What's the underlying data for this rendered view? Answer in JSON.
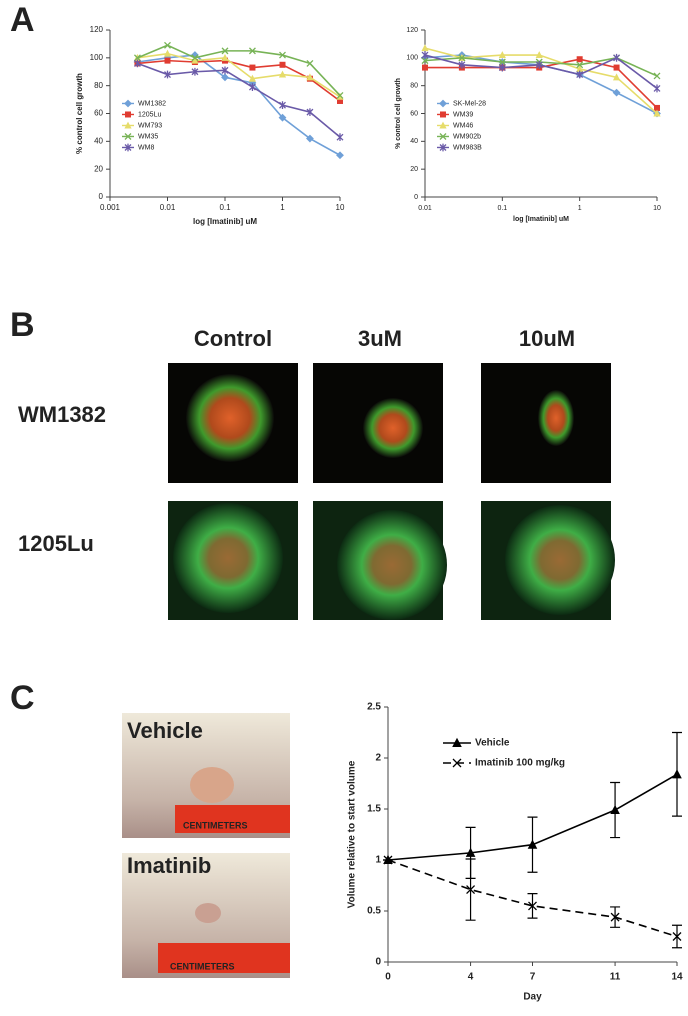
{
  "figure": {
    "panel_labels": [
      "A",
      "B",
      "C"
    ],
    "columns": [
      "Control",
      "3uM",
      "10uM"
    ],
    "rows": [
      "WM1382",
      "1205Lu"
    ],
    "photos": [
      {
        "label": "Vehicle",
        "ruler": "CENTIMETERS"
      },
      {
        "label": "Imatinib",
        "ruler": "CENTIMETERS"
      }
    ]
  },
  "chart_data": [
    {
      "type": "line",
      "xlabel": "log [Imatinib] uM",
      "ylabel": "% control cell growth",
      "log_x": true,
      "x": [
        0.003,
        0.01,
        0.03,
        0.1,
        0.3,
        1,
        3,
        10
      ],
      "xlim": [
        0.001,
        10
      ],
      "xticks": [
        0.001,
        0.01,
        0.1,
        1,
        10
      ],
      "ylim": [
        0,
        120
      ],
      "yticks": [
        0,
        20,
        40,
        60,
        80,
        100,
        120
      ],
      "grid": false,
      "legend": "center left",
      "series": [
        {
          "name": "WM1382",
          "color": "#6fa0d8",
          "marker": "diamond",
          "values": [
            97,
            100,
            102,
            86,
            82,
            57,
            42,
            30
          ]
        },
        {
          "name": "1205Lu",
          "color": "#e03c31",
          "marker": "square",
          "values": [
            96,
            98,
            97,
            98,
            93,
            95,
            85,
            69
          ]
        },
        {
          "name": "WM793",
          "color": "#e6dc6a",
          "marker": "triangle",
          "values": [
            100,
            103,
            98,
            100,
            85,
            88,
            86,
            72
          ]
        },
        {
          "name": "WM35",
          "color": "#77b356",
          "marker": "x",
          "values": [
            100,
            109,
            100,
            105,
            105,
            102,
            96,
            73
          ]
        },
        {
          "name": "WM8",
          "color": "#6a5aa8",
          "marker": "star",
          "values": [
            96,
            88,
            90,
            91,
            79,
            66,
            61,
            43
          ]
        }
      ]
    },
    {
      "type": "line",
      "xlabel": "log [Imatinib] uM",
      "ylabel": "% control cell growth",
      "log_x": true,
      "x": [
        0.01,
        0.03,
        0.1,
        0.3,
        1,
        3,
        10
      ],
      "xlim": [
        0.01,
        10
      ],
      "xticks": [
        0.01,
        0.1,
        1,
        10
      ],
      "ylim": [
        0,
        120
      ],
      "yticks": [
        0,
        20,
        40,
        60,
        80,
        100,
        120
      ],
      "grid": false,
      "legend": "center left",
      "series": [
        {
          "name": "SK-Mel-28",
          "color": "#6fa0d8",
          "marker": "diamond",
          "values": [
            100,
            102,
            97,
            95,
            88,
            75,
            60
          ]
        },
        {
          "name": "WM39",
          "color": "#e03c31",
          "marker": "square",
          "values": [
            93,
            93,
            93,
            93,
            99,
            93,
            64
          ]
        },
        {
          "name": "WM46",
          "color": "#e6dc6a",
          "marker": "triangle",
          "values": [
            107,
            100,
            102,
            102,
            92,
            86,
            60
          ]
        },
        {
          "name": "WM902b",
          "color": "#77b356",
          "marker": "x",
          "values": [
            98,
            100,
            97,
            97,
            95,
            100,
            87
          ]
        },
        {
          "name": "WM983B",
          "color": "#6a5aa8",
          "marker": "star",
          "values": [
            102,
            95,
            93,
            95,
            88,
            100,
            78
          ]
        }
      ]
    },
    {
      "type": "line",
      "xlabel": "Day",
      "ylabel": "Volume relative to start volume",
      "log_x": false,
      "x": [
        0,
        4,
        7,
        11,
        14
      ],
      "xlim": [
        0,
        14
      ],
      "xticks": [
        0,
        4,
        7,
        11,
        14
      ],
      "ylim": [
        0,
        2.5
      ],
      "yticks": [
        0,
        0.5,
        1,
        1.5,
        2,
        2.5
      ],
      "grid": false,
      "legend": "upper left",
      "series": [
        {
          "name": "Vehicle",
          "color": "#000000",
          "marker": "triangle",
          "linestyle": "solid",
          "values": [
            1,
            1.07,
            1.15,
            1.49,
            1.84
          ],
          "errors": [
            0,
            0.25,
            0.27,
            0.27,
            0.41
          ]
        },
        {
          "name": "Imatinib 100 mg/kg",
          "color": "#000000",
          "marker": "x",
          "linestyle": "dashed",
          "values": [
            1,
            0.71,
            0.55,
            0.44,
            0.25
          ],
          "errors": [
            0,
            0.3,
            0.12,
            0.1,
            0.11
          ]
        }
      ]
    }
  ]
}
